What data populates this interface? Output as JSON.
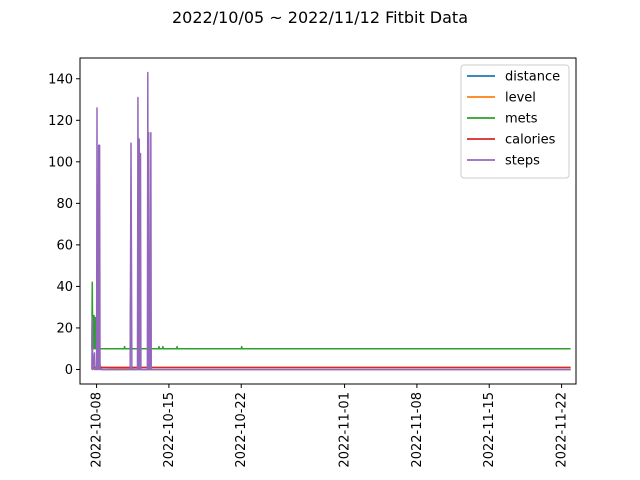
{
  "chart_data": {
    "type": "line",
    "title": "2022/10/05 ~ 2022/11/12 Fitbit Data",
    "xlabel": "",
    "ylabel": "",
    "ylim": [
      -7,
      150
    ],
    "xlim": [
      "2022-10-06T09:30",
      "2022-11-23T09:30"
    ],
    "yticks": [
      0,
      20,
      40,
      60,
      80,
      100,
      120,
      140
    ],
    "xticks": [
      "2022-10-08",
      "2022-10-15",
      "2022-10-22",
      "2022-11-01",
      "2022-11-08",
      "2022-11-15",
      "2022-11-22"
    ],
    "grid": false,
    "legend_position": "top-right",
    "series": [
      {
        "name": "distance",
        "color": "#1f77b4",
        "points": [
          [
            "2022-10-07T13:00",
            0
          ],
          [
            "2022-10-08T08:00",
            2
          ],
          [
            "2022-10-08T12:00",
            0
          ],
          [
            "2022-11-22T21:00",
            0
          ]
        ]
      },
      {
        "name": "level",
        "color": "#ff7f0e",
        "points": [
          [
            "2022-10-07T13:00",
            0
          ],
          [
            "2022-10-08T12:00",
            1
          ],
          [
            "2022-10-13T00:00",
            0
          ],
          [
            "2022-11-22T21:00",
            0
          ]
        ]
      },
      {
        "name": "mets",
        "color": "#2ca02c",
        "points": [
          [
            "2022-10-07T13:00",
            10
          ],
          [
            "2022-10-07T14:00",
            42
          ],
          [
            "2022-10-07T15:00",
            10
          ],
          [
            "2022-10-07T16:00",
            26
          ],
          [
            "2022-10-07T17:00",
            10
          ],
          [
            "2022-10-07T18:00",
            26
          ],
          [
            "2022-10-07T19:00",
            10
          ],
          [
            "2022-10-07T21:00",
            25
          ],
          [
            "2022-10-07T22:00",
            10
          ],
          [
            "2022-10-08T00:00",
            10
          ],
          [
            "2022-10-09T00:00",
            10
          ],
          [
            "2022-10-10T16:00",
            10
          ],
          [
            "2022-10-10T17:00",
            11
          ],
          [
            "2022-10-10T18:00",
            10
          ],
          [
            "2022-10-11T06:00",
            10
          ],
          [
            "2022-10-11T07:00",
            34
          ],
          [
            "2022-10-11T08:00",
            10
          ],
          [
            "2022-10-12T00:00",
            10
          ],
          [
            "2022-10-12T01:00",
            11
          ],
          [
            "2022-10-12T02:00",
            10
          ],
          [
            "2022-10-14T00:00",
            10
          ],
          [
            "2022-10-14T01:00",
            11
          ],
          [
            "2022-10-14T02:00",
            10
          ],
          [
            "2022-10-14T09:00",
            10
          ],
          [
            "2022-10-14T10:00",
            11
          ],
          [
            "2022-10-14T11:00",
            10
          ],
          [
            "2022-10-15T18:00",
            10
          ],
          [
            "2022-10-15T19:00",
            11
          ],
          [
            "2022-10-15T20:00",
            10
          ],
          [
            "2022-10-22T00:00",
            10
          ],
          [
            "2022-10-22T01:00",
            11
          ],
          [
            "2022-10-22T02:00",
            10
          ],
          [
            "2022-11-22T21:00",
            10
          ]
        ]
      },
      {
        "name": "calories",
        "color": "#d62728",
        "points": [
          [
            "2022-10-07T13:00",
            1
          ],
          [
            "2022-11-22T21:00",
            1
          ]
        ]
      },
      {
        "name": "steps",
        "color": "#9467bd",
        "points": [
          [
            "2022-10-07T13:00",
            0
          ],
          [
            "2022-10-07T14:00",
            25
          ],
          [
            "2022-10-07T15:00",
            0
          ],
          [
            "2022-10-07T19:00",
            8
          ],
          [
            "2022-10-07T20:00",
            0
          ],
          [
            "2022-10-08T00:00",
            0
          ],
          [
            "2022-10-08T01:00",
            126
          ],
          [
            "2022-10-08T02:00",
            0
          ],
          [
            "2022-10-08T04:00",
            0
          ],
          [
            "2022-10-08T05:00",
            108
          ],
          [
            "2022-10-08T06:00",
            0
          ],
          [
            "2022-10-08T07:00",
            108
          ],
          [
            "2022-10-08T08:00",
            0
          ],
          [
            "2022-10-11T06:00",
            0
          ],
          [
            "2022-10-11T08:00",
            109
          ],
          [
            "2022-10-11T10:00",
            0
          ],
          [
            "2022-10-11T23:00",
            0
          ],
          [
            "2022-10-12T00:00",
            131
          ],
          [
            "2022-10-12T02:00",
            0
          ],
          [
            "2022-10-12T03:00",
            111
          ],
          [
            "2022-10-12T05:00",
            0
          ],
          [
            "2022-10-12T06:00",
            104
          ],
          [
            "2022-10-12T07:00",
            0
          ],
          [
            "2022-10-12T22:00",
            0
          ],
          [
            "2022-10-12T23:00",
            143
          ],
          [
            "2022-10-13T00:00",
            0
          ],
          [
            "2022-10-13T01:00",
            114
          ],
          [
            "2022-10-13T03:00",
            0
          ],
          [
            "2022-10-13T05:00",
            0
          ],
          [
            "2022-10-13T06:00",
            114
          ],
          [
            "2022-10-13T07:00",
            0
          ],
          [
            "2022-11-22T21:00",
            0
          ]
        ]
      }
    ]
  }
}
